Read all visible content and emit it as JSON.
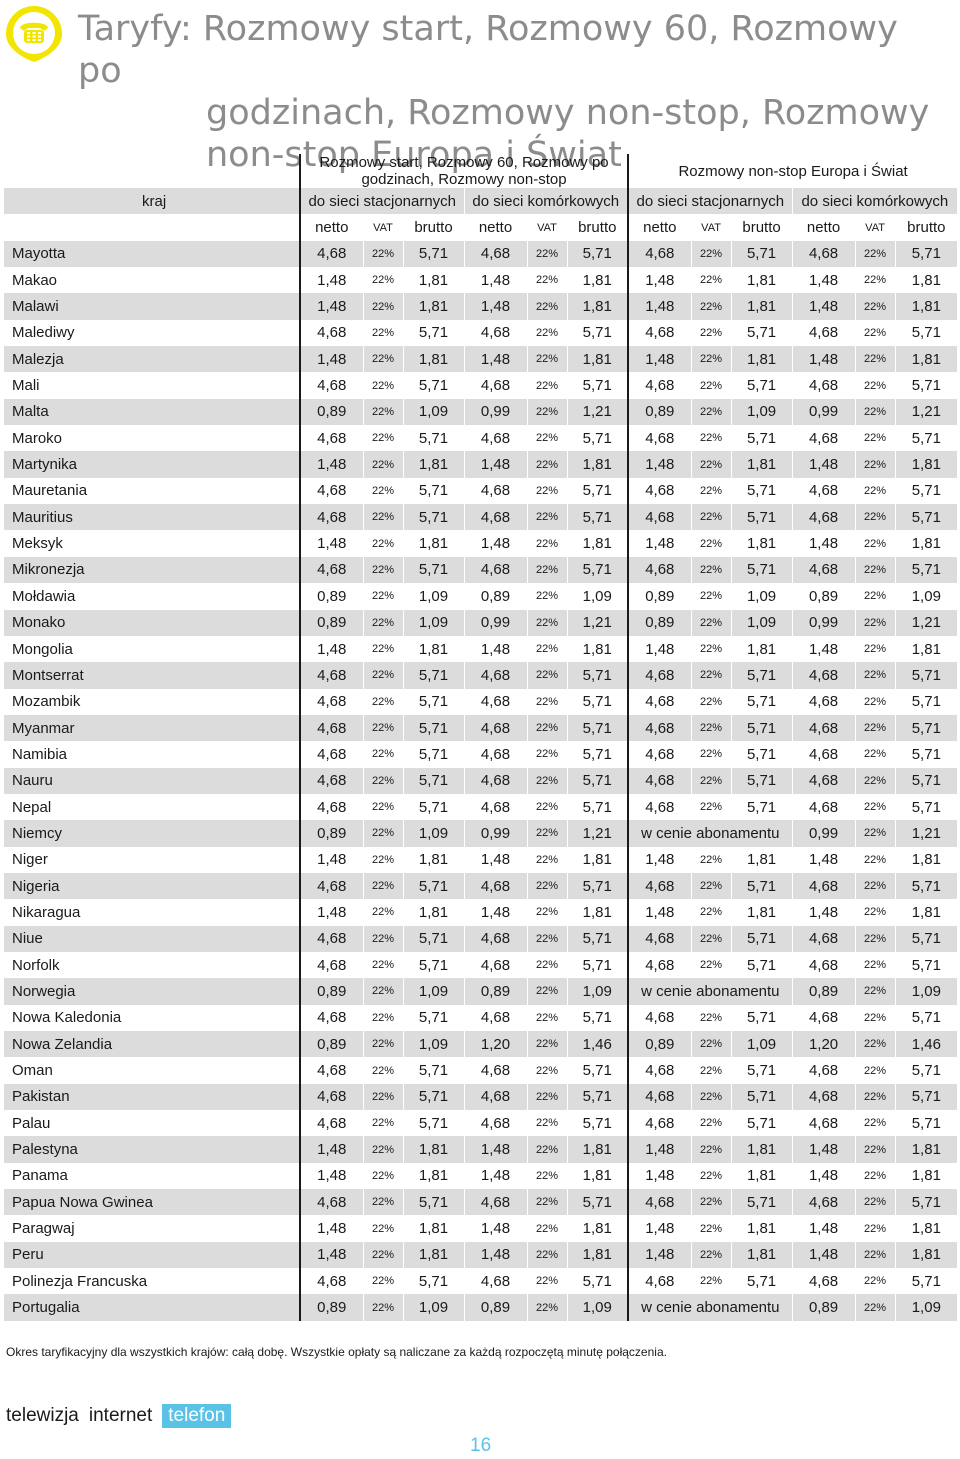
{
  "title": {
    "line1": "Taryfy: Rozmowy start, Rozmowy 60, Rozmowy po",
    "line2": "godzinach, Rozmowy non-stop, Rozmowy",
    "line3": "non-stop Europa i Świat"
  },
  "colors": {
    "accent_icon": "#f2e600",
    "brand_blue": "#5bc2e7",
    "row_shade": "#dcdcdc",
    "title_gray": "#8c8c8c"
  },
  "table": {
    "group1": "Rozmowy start, Rozmowy 60, Rozmowy po godzinach, Rozmowy non-stop",
    "group2": "Rozmowy non-stop Europa i Świat",
    "country_header": "kraj",
    "sub": [
      "do sieci stacjonarnych",
      "do sieci komórkowych",
      "do sieci stacjonarnych",
      "do sieci komórkowych"
    ],
    "col_netto": "netto",
    "col_vat": "VAT",
    "col_brutto": "brutto",
    "rows": [
      {
        "kraj": "Mayotta",
        "v": [
          "4,68",
          "22%",
          "5,71",
          "4,68",
          "22%",
          "5,71",
          "4,68",
          "22%",
          "5,71",
          "4,68",
          "22%",
          "5,71"
        ]
      },
      {
        "kraj": "Makao",
        "v": [
          "1,48",
          "22%",
          "1,81",
          "1,48",
          "22%",
          "1,81",
          "1,48",
          "22%",
          "1,81",
          "1,48",
          "22%",
          "1,81"
        ]
      },
      {
        "kraj": "Malawi",
        "v": [
          "1,48",
          "22%",
          "1,81",
          "1,48",
          "22%",
          "1,81",
          "1,48",
          "22%",
          "1,81",
          "1,48",
          "22%",
          "1,81"
        ]
      },
      {
        "kraj": "Malediwy",
        "v": [
          "4,68",
          "22%",
          "5,71",
          "4,68",
          "22%",
          "5,71",
          "4,68",
          "22%",
          "5,71",
          "4,68",
          "22%",
          "5,71"
        ]
      },
      {
        "kraj": "Malezja",
        "v": [
          "1,48",
          "22%",
          "1,81",
          "1,48",
          "22%",
          "1,81",
          "1,48",
          "22%",
          "1,81",
          "1,48",
          "22%",
          "1,81"
        ]
      },
      {
        "kraj": "Mali",
        "v": [
          "4,68",
          "22%",
          "5,71",
          "4,68",
          "22%",
          "5,71",
          "4,68",
          "22%",
          "5,71",
          "4,68",
          "22%",
          "5,71"
        ]
      },
      {
        "kraj": "Malta",
        "v": [
          "0,89",
          "22%",
          "1,09",
          "0,99",
          "22%",
          "1,21",
          "0,89",
          "22%",
          "1,09",
          "0,99",
          "22%",
          "1,21"
        ]
      },
      {
        "kraj": "Maroko",
        "v": [
          "4,68",
          "22%",
          "5,71",
          "4,68",
          "22%",
          "5,71",
          "4,68",
          "22%",
          "5,71",
          "4,68",
          "22%",
          "5,71"
        ]
      },
      {
        "kraj": "Martynika",
        "v": [
          "1,48",
          "22%",
          "1,81",
          "1,48",
          "22%",
          "1,81",
          "1,48",
          "22%",
          "1,81",
          "1,48",
          "22%",
          "1,81"
        ]
      },
      {
        "kraj": "Mauretania",
        "v": [
          "4,68",
          "22%",
          "5,71",
          "4,68",
          "22%",
          "5,71",
          "4,68",
          "22%",
          "5,71",
          "4,68",
          "22%",
          "5,71"
        ]
      },
      {
        "kraj": "Mauritius",
        "v": [
          "4,68",
          "22%",
          "5,71",
          "4,68",
          "22%",
          "5,71",
          "4,68",
          "22%",
          "5,71",
          "4,68",
          "22%",
          "5,71"
        ]
      },
      {
        "kraj": "Meksyk",
        "v": [
          "1,48",
          "22%",
          "1,81",
          "1,48",
          "22%",
          "1,81",
          "1,48",
          "22%",
          "1,81",
          "1,48",
          "22%",
          "1,81"
        ]
      },
      {
        "kraj": "Mikronezja",
        "v": [
          "4,68",
          "22%",
          "5,71",
          "4,68",
          "22%",
          "5,71",
          "4,68",
          "22%",
          "5,71",
          "4,68",
          "22%",
          "5,71"
        ]
      },
      {
        "kraj": "Mołdawia",
        "v": [
          "0,89",
          "22%",
          "1,09",
          "0,89",
          "22%",
          "1,09",
          "0,89",
          "22%",
          "1,09",
          "0,89",
          "22%",
          "1,09"
        ]
      },
      {
        "kraj": "Monako",
        "v": [
          "0,89",
          "22%",
          "1,09",
          "0,99",
          "22%",
          "1,21",
          "0,89",
          "22%",
          "1,09",
          "0,99",
          "22%",
          "1,21"
        ]
      },
      {
        "kraj": "Mongolia",
        "v": [
          "1,48",
          "22%",
          "1,81",
          "1,48",
          "22%",
          "1,81",
          "1,48",
          "22%",
          "1,81",
          "1,48",
          "22%",
          "1,81"
        ]
      },
      {
        "kraj": "Montserrat",
        "v": [
          "4,68",
          "22%",
          "5,71",
          "4,68",
          "22%",
          "5,71",
          "4,68",
          "22%",
          "5,71",
          "4,68",
          "22%",
          "5,71"
        ]
      },
      {
        "kraj": "Mozambik",
        "v": [
          "4,68",
          "22%",
          "5,71",
          "4,68",
          "22%",
          "5,71",
          "4,68",
          "22%",
          "5,71",
          "4,68",
          "22%",
          "5,71"
        ]
      },
      {
        "kraj": "Myanmar",
        "v": [
          "4,68",
          "22%",
          "5,71",
          "4,68",
          "22%",
          "5,71",
          "4,68",
          "22%",
          "5,71",
          "4,68",
          "22%",
          "5,71"
        ]
      },
      {
        "kraj": "Namibia",
        "v": [
          "4,68",
          "22%",
          "5,71",
          "4,68",
          "22%",
          "5,71",
          "4,68",
          "22%",
          "5,71",
          "4,68",
          "22%",
          "5,71"
        ]
      },
      {
        "kraj": "Nauru",
        "v": [
          "4,68",
          "22%",
          "5,71",
          "4,68",
          "22%",
          "5,71",
          "4,68",
          "22%",
          "5,71",
          "4,68",
          "22%",
          "5,71"
        ]
      },
      {
        "kraj": "Nepal",
        "v": [
          "4,68",
          "22%",
          "5,71",
          "4,68",
          "22%",
          "5,71",
          "4,68",
          "22%",
          "5,71",
          "4,68",
          "22%",
          "5,71"
        ]
      },
      {
        "kraj": "Niemcy",
        "v": [
          "0,89",
          "22%",
          "1,09",
          "0,99",
          "22%",
          "1,21"
        ],
        "abon": "w cenie abonamentu",
        "k": [
          "0,99",
          "22%",
          "1,21"
        ]
      },
      {
        "kraj": "Niger",
        "v": [
          "1,48",
          "22%",
          "1,81",
          "1,48",
          "22%",
          "1,81",
          "1,48",
          "22%",
          "1,81",
          "1,48",
          "22%",
          "1,81"
        ]
      },
      {
        "kraj": "Nigeria",
        "v": [
          "4,68",
          "22%",
          "5,71",
          "4,68",
          "22%",
          "5,71",
          "4,68",
          "22%",
          "5,71",
          "4,68",
          "22%",
          "5,71"
        ]
      },
      {
        "kraj": "Nikaragua",
        "v": [
          "1,48",
          "22%",
          "1,81",
          "1,48",
          "22%",
          "1,81",
          "1,48",
          "22%",
          "1,81",
          "1,48",
          "22%",
          "1,81"
        ]
      },
      {
        "kraj": "Niue",
        "v": [
          "4,68",
          "22%",
          "5,71",
          "4,68",
          "22%",
          "5,71",
          "4,68",
          "22%",
          "5,71",
          "4,68",
          "22%",
          "5,71"
        ]
      },
      {
        "kraj": "Norfolk",
        "v": [
          "4,68",
          "22%",
          "5,71",
          "4,68",
          "22%",
          "5,71",
          "4,68",
          "22%",
          "5,71",
          "4,68",
          "22%",
          "5,71"
        ]
      },
      {
        "kraj": "Norwegia",
        "v": [
          "0,89",
          "22%",
          "1,09",
          "0,89",
          "22%",
          "1,09"
        ],
        "abon": "w cenie abonamentu",
        "k": [
          "0,89",
          "22%",
          "1,09"
        ]
      },
      {
        "kraj": "Nowa Kaledonia",
        "v": [
          "4,68",
          "22%",
          "5,71",
          "4,68",
          "22%",
          "5,71",
          "4,68",
          "22%",
          "5,71",
          "4,68",
          "22%",
          "5,71"
        ]
      },
      {
        "kraj": "Nowa Zelandia",
        "v": [
          "0,89",
          "22%",
          "1,09",
          "1,20",
          "22%",
          "1,46",
          "0,89",
          "22%",
          "1,09",
          "1,20",
          "22%",
          "1,46"
        ]
      },
      {
        "kraj": "Oman",
        "v": [
          "4,68",
          "22%",
          "5,71",
          "4,68",
          "22%",
          "5,71",
          "4,68",
          "22%",
          "5,71",
          "4,68",
          "22%",
          "5,71"
        ]
      },
      {
        "kraj": "Pakistan",
        "v": [
          "4,68",
          "22%",
          "5,71",
          "4,68",
          "22%",
          "5,71",
          "4,68",
          "22%",
          "5,71",
          "4,68",
          "22%",
          "5,71"
        ]
      },
      {
        "kraj": "Palau",
        "v": [
          "4,68",
          "22%",
          "5,71",
          "4,68",
          "22%",
          "5,71",
          "4,68",
          "22%",
          "5,71",
          "4,68",
          "22%",
          "5,71"
        ]
      },
      {
        "kraj": "Palestyna",
        "v": [
          "1,48",
          "22%",
          "1,81",
          "1,48",
          "22%",
          "1,81",
          "1,48",
          "22%",
          "1,81",
          "1,48",
          "22%",
          "1,81"
        ]
      },
      {
        "kraj": "Panama",
        "v": [
          "1,48",
          "22%",
          "1,81",
          "1,48",
          "22%",
          "1,81",
          "1,48",
          "22%",
          "1,81",
          "1,48",
          "22%",
          "1,81"
        ]
      },
      {
        "kraj": "Papua Nowa Gwinea",
        "v": [
          "4,68",
          "22%",
          "5,71",
          "4,68",
          "22%",
          "5,71",
          "4,68",
          "22%",
          "5,71",
          "4,68",
          "22%",
          "5,71"
        ]
      },
      {
        "kraj": "Paragwaj",
        "v": [
          "1,48",
          "22%",
          "1,81",
          "1,48",
          "22%",
          "1,81",
          "1,48",
          "22%",
          "1,81",
          "1,48",
          "22%",
          "1,81"
        ]
      },
      {
        "kraj": "Peru",
        "v": [
          "1,48",
          "22%",
          "1,81",
          "1,48",
          "22%",
          "1,81",
          "1,48",
          "22%",
          "1,81",
          "1,48",
          "22%",
          "1,81"
        ]
      },
      {
        "kraj": "Polinezja Francuska",
        "v": [
          "4,68",
          "22%",
          "5,71",
          "4,68",
          "22%",
          "5,71",
          "4,68",
          "22%",
          "5,71",
          "4,68",
          "22%",
          "5,71"
        ]
      },
      {
        "kraj": "Portugalia",
        "v": [
          "0,89",
          "22%",
          "1,09",
          "0,89",
          "22%",
          "1,09"
        ],
        "abon": "w cenie abonamentu",
        "k": [
          "0,89",
          "22%",
          "1,09"
        ]
      }
    ]
  },
  "footnote": "Okres taryfikacyjny dla wszystkich krajów: całą dobę. Wszystkie opłaty są naliczane za każdą rozpoczętą minutę połączenia.",
  "brand": {
    "tv": "telewizja",
    "internet": "internet",
    "phone": "telefon"
  },
  "page_number": "16"
}
